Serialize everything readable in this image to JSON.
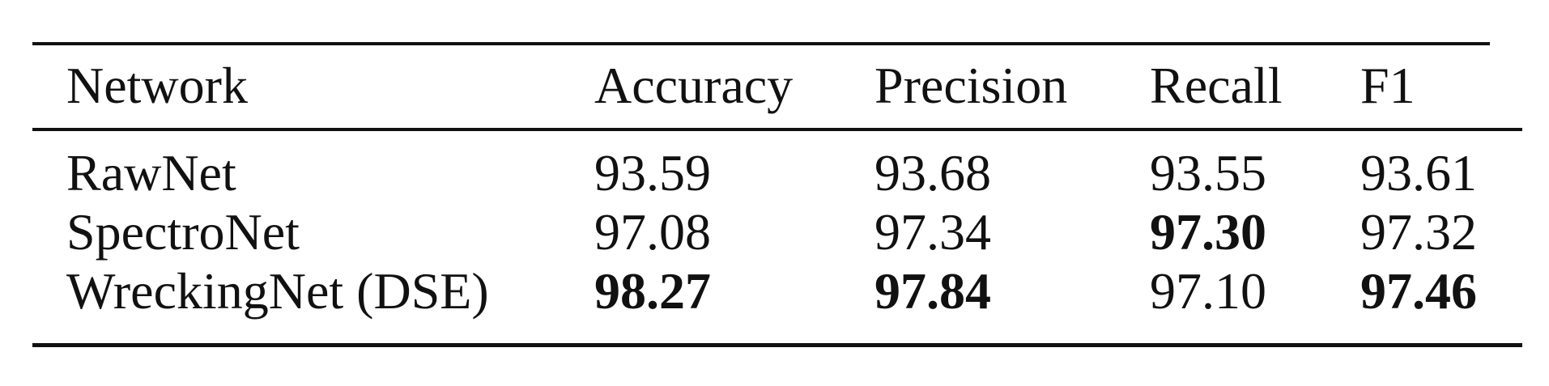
{
  "table": {
    "headers": [
      "Network",
      "Accuracy",
      "Precision",
      "Recall",
      "F1"
    ],
    "rows": [
      {
        "network": "RawNet",
        "accuracy": "93.59",
        "precision": "93.68",
        "recall": "93.55",
        "f1": "93.61"
      },
      {
        "network": "SpectroNet",
        "accuracy": "97.08",
        "precision": "97.34",
        "recall": "97.30",
        "f1": "97.32"
      },
      {
        "network": "WreckingNet (DSE)",
        "accuracy": "98.27",
        "precision": "97.84",
        "recall": "97.10",
        "f1": "97.46"
      }
    ],
    "bold_cells": [
      "rows.1.recall",
      "rows.2.accuracy",
      "rows.2.precision",
      "rows.2.f1"
    ]
  }
}
